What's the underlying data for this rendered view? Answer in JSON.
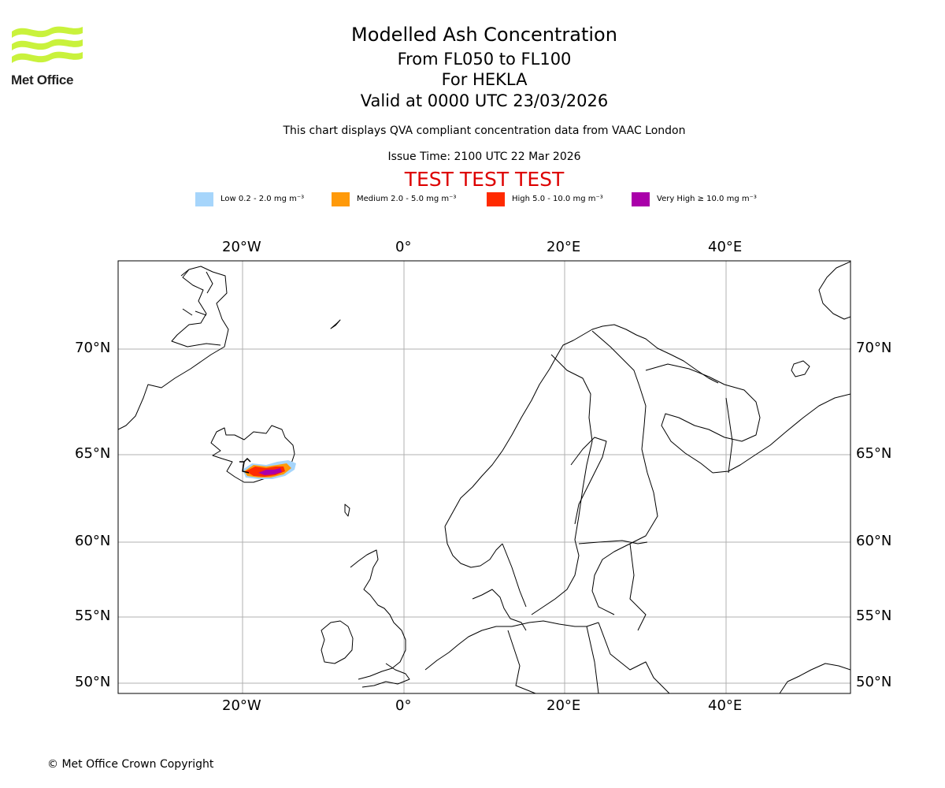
{
  "header": {
    "logo_text": "Met Office",
    "title": "Modelled Ash Concentration",
    "levels": "From FL050 to FL100",
    "volcano": "For HEKLA",
    "valid": "Valid at 0000 UTC 23/03/2026",
    "description": "This chart displays QVA compliant concentration data from VAAC London",
    "issue_time": "Issue Time: 2100 UTC 22 Mar 2026",
    "test_banner": "TEST TEST TEST"
  },
  "legend": [
    {
      "label": "Low 0.2 - 2.0 mg m⁻³",
      "color": "#a6d5fb"
    },
    {
      "label": "Medium 2.0 - 5.0 mg m⁻³",
      "color": "#ff9a0a"
    },
    {
      "label": "High 5.0 - 10.0 mg m⁻³",
      "color": "#ff2a00"
    },
    {
      "label": "Very High  ≥  10.0 mg m⁻³",
      "color": "#aa00aa"
    }
  ],
  "map": {
    "lon_ticks": [
      "20°W",
      "0°",
      "20°E",
      "40°E"
    ],
    "lat_ticks": [
      "70°N",
      "65°N",
      "60°N",
      "55°N",
      "50°N"
    ],
    "extent": {
      "lon": [
        -35,
        55
      ],
      "lat": [
        49.5,
        74
      ]
    },
    "grid": true
  },
  "footer": {
    "copyright": "© Met Office Crown Copyright"
  }
}
